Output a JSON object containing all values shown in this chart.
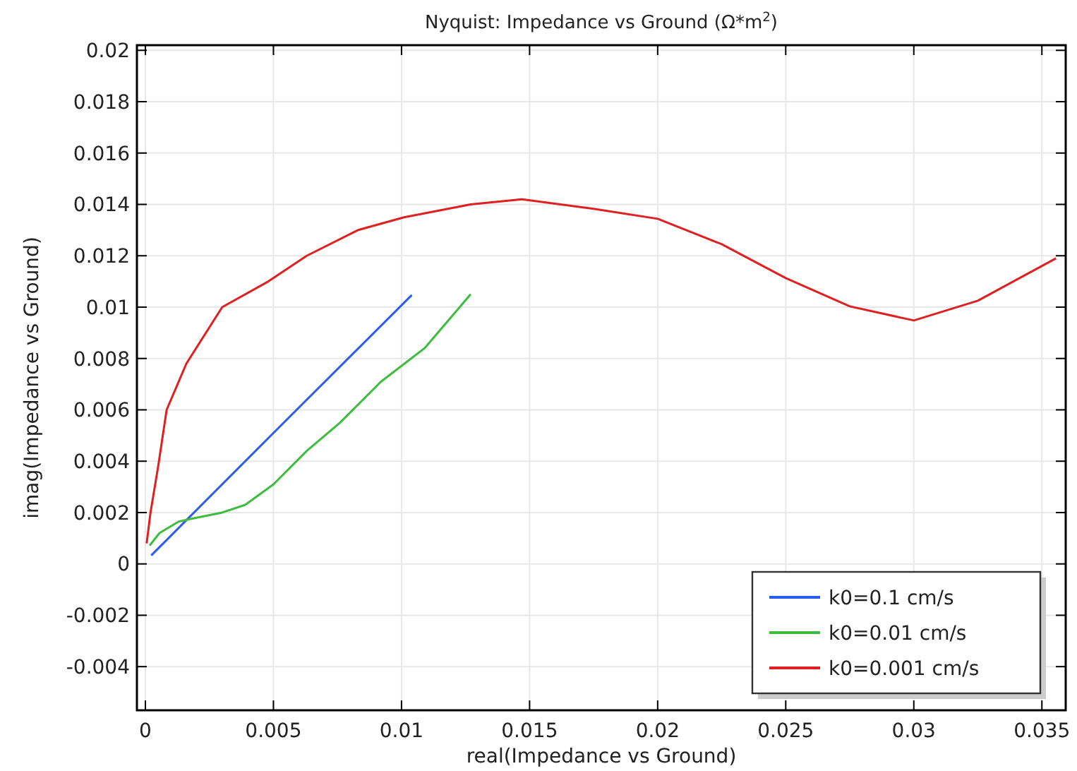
{
  "chart_data": {
    "type": "line",
    "title": "Nyquist: Impedance vs Ground (Ω*m$^{2}$)",
    "xlabel": "real(Impedance vs Ground)",
    "ylabel": "imag(Impedance vs Ground)",
    "xlim": [
      -0.00033,
      0.03593
    ],
    "ylim": [
      -0.0057,
      0.0202
    ],
    "xticks": [
      0,
      0.005,
      0.01,
      0.015,
      0.02,
      0.025,
      0.03,
      0.035
    ],
    "yticks": [
      -0.004,
      -0.002,
      0,
      0.002,
      0.004,
      0.006,
      0.008,
      0.01,
      0.012,
      0.014,
      0.016,
      0.018,
      0.02
    ],
    "grid": true,
    "legend": "bottom right",
    "line_style": "solid",
    "marker": "none",
    "series": [
      {
        "name": "k0=0.1 cm/s",
        "color": "#2a5cf0",
        "x": [
          0.00023,
          0.005,
          0.0104
        ],
        "values": [
          0.00033,
          0.0051,
          0.01047
        ]
      },
      {
        "name": "k0=0.01 cm/s",
        "color": "#3dbd3d",
        "x": [
          0.00017,
          0.00055,
          0.0013,
          0.002,
          0.003,
          0.0039,
          0.005,
          0.0063,
          0.0076,
          0.0092,
          0.0109,
          0.0127
        ],
        "values": [
          0.00072,
          0.0012,
          0.00165,
          0.0018,
          0.002,
          0.0023,
          0.0031,
          0.0044,
          0.0055,
          0.0071,
          0.0084,
          0.0105
        ]
      },
      {
        "name": "k0=0.001 cm/s",
        "color": "#e02020",
        "x": [
          5e-05,
          0.0002,
          0.0005,
          0.00083,
          0.0016,
          0.003,
          0.0048,
          0.0063,
          0.0083,
          0.0101,
          0.0127,
          0.0147,
          0.0175,
          0.02,
          0.0225,
          0.025,
          0.0275,
          0.03,
          0.0325,
          0.03555
        ],
        "values": [
          0.0008,
          0.002,
          0.0038,
          0.006,
          0.0078,
          0.01,
          0.011,
          0.012,
          0.013,
          0.0135,
          0.014,
          0.0142,
          0.01383,
          0.01344,
          0.01245,
          0.01113,
          0.01003,
          0.00948,
          0.01025,
          0.0119
        ]
      }
    ]
  }
}
